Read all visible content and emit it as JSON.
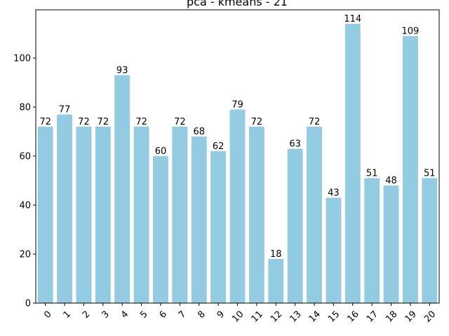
{
  "chart_data": {
    "type": "bar",
    "title": "pca - kmeans - 21",
    "xlabel": "",
    "ylabel": "",
    "categories": [
      "0",
      "1",
      "2",
      "3",
      "4",
      "5",
      "6",
      "7",
      "8",
      "9",
      "10",
      "11",
      "12",
      "13",
      "14",
      "15",
      "16",
      "17",
      "18",
      "19",
      "20"
    ],
    "values": [
      72,
      77,
      72,
      72,
      93,
      72,
      60,
      72,
      68,
      62,
      79,
      72,
      18,
      63,
      72,
      43,
      114,
      51,
      48,
      109,
      51
    ],
    "ylim": [
      0,
      119.7
    ],
    "yticks": [
      0,
      20,
      40,
      60,
      80,
      100
    ],
    "bar_color": "#92cbe2",
    "grid": false,
    "data_labels": true,
    "x_tick_rotation": -45
  }
}
